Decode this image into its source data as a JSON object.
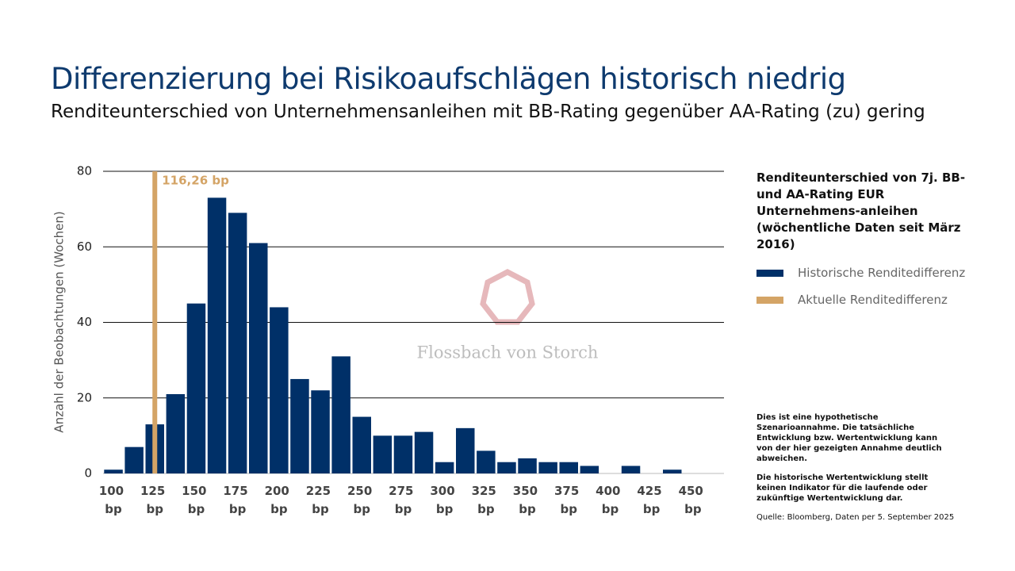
{
  "header": {
    "title": "Differenzierung bei Risikoaufschlägen historisch niedrig",
    "subtitle": "Renditeunterschied von Unternehmensanleihen mit BB-Rating gegenüber AA-Rating (zu) gering"
  },
  "chart_data": {
    "type": "bar",
    "y_label": "Anzahl der Beobachtungen (Wochen)",
    "categories": [
      "100 bp",
      null,
      "125 bp",
      null,
      "150 bp",
      null,
      "175 bp",
      null,
      "200 bp",
      null,
      "225 bp",
      null,
      "250 bp",
      null,
      "275 bp",
      null,
      "300 bp",
      null,
      "325 bp",
      null,
      "350 bp",
      null,
      "375 bp",
      null,
      "400 bp",
      null,
      "425 bp",
      null,
      "450 bp",
      null
    ],
    "series": [
      {
        "name": "Historische Renditedifferenz",
        "color": "#003068",
        "values": [
          1,
          7,
          13,
          21,
          45,
          73,
          69,
          61,
          44,
          25,
          22,
          31,
          15,
          10,
          10,
          11,
          3,
          12,
          6,
          3,
          4,
          3,
          3,
          2,
          0,
          2,
          0,
          1,
          0,
          0
        ]
      }
    ],
    "current": {
      "name": "Aktuelle Renditedifferenz",
      "color": "#d4a466",
      "label": "116,26 bp",
      "at": "125 bp"
    },
    "ylim": [
      0,
      80
    ],
    "yticks": [
      0,
      20,
      40,
      60,
      80
    ],
    "grid": true,
    "legend_title": "Renditeunterschied von 7j. BB- und AA-Rating EUR Unternehmens-anleihen (wöchentliche Daten seit März 2016)"
  },
  "watermark": "Flossbach von Storch",
  "notes": [
    "Dies ist eine hypothetische Szenarioannahme. Die tatsächliche Entwicklung bzw. Wertentwicklung kann von der hier gezeigten Annahme deutlich abweichen.",
    "Die historische Wertentwicklung stellt keinen Indikator für die laufende oder zukünftige Wertentwicklung dar."
  ],
  "source": "Quelle: Bloomberg, Daten per 5. September 2025"
}
